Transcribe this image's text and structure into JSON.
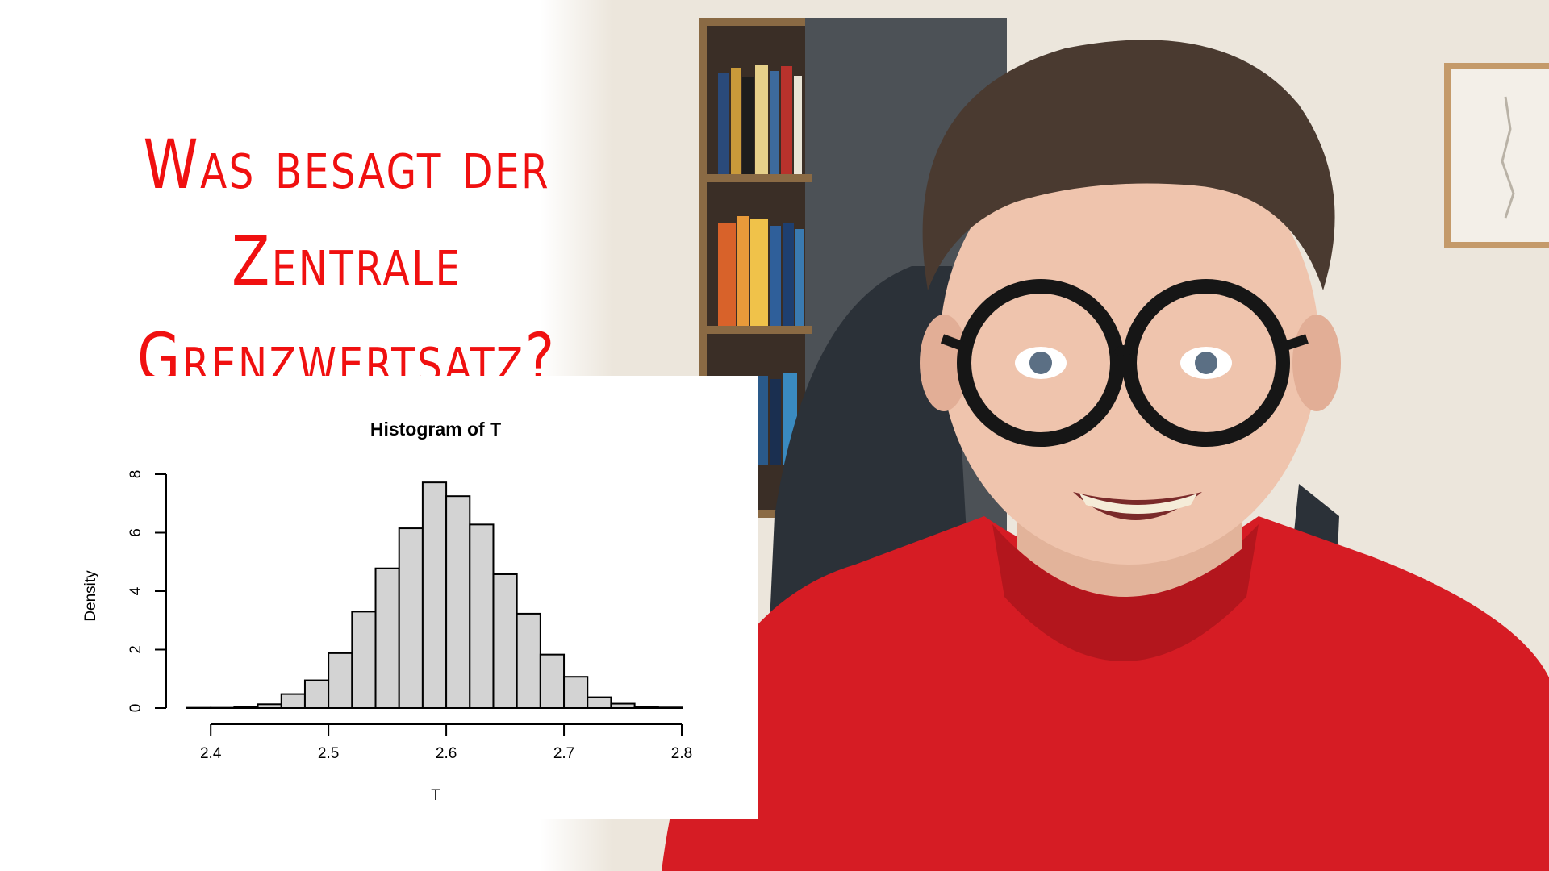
{
  "thumbnail": {
    "title_lines": [
      "Was besagt der",
      "Zentrale",
      "Grenzwertsatz?"
    ],
    "title_color": "#f01010"
  },
  "colors": {
    "shirt": "#d61c24",
    "wall": "#ece6dc",
    "bar_fill": "#d3d3d3",
    "bar_stroke": "#000000"
  },
  "chart_data": {
    "type": "bar",
    "title": "Histogram of T",
    "xlabel": "T",
    "ylabel": "Density",
    "xlim": [
      2.38,
      2.8
    ],
    "ylim": [
      0,
      8
    ],
    "x_ticks": [
      "2.4",
      "2.5",
      "2.6",
      "2.7",
      "2.8"
    ],
    "x_tick_values": [
      2.4,
      2.5,
      2.6,
      2.7,
      2.8
    ],
    "y_ticks": [
      "0",
      "2",
      "4",
      "6",
      "8"
    ],
    "y_tick_values": [
      0,
      2,
      4,
      6,
      8
    ],
    "bin_edges": [
      2.38,
      2.4,
      2.42,
      2.44,
      2.46,
      2.48,
      2.5,
      2.52,
      2.54,
      2.56,
      2.58,
      2.6,
      2.62,
      2.64,
      2.66,
      2.68,
      2.7,
      2.72,
      2.74,
      2.76,
      2.78,
      2.8
    ],
    "values": [
      0.01,
      0.01,
      0.05,
      0.13,
      0.48,
      0.95,
      1.88,
      3.3,
      4.78,
      6.15,
      7.72,
      7.25,
      6.28,
      4.58,
      3.23,
      1.83,
      1.07,
      0.37,
      0.15,
      0.05,
      0.02
    ],
    "grid": false
  }
}
